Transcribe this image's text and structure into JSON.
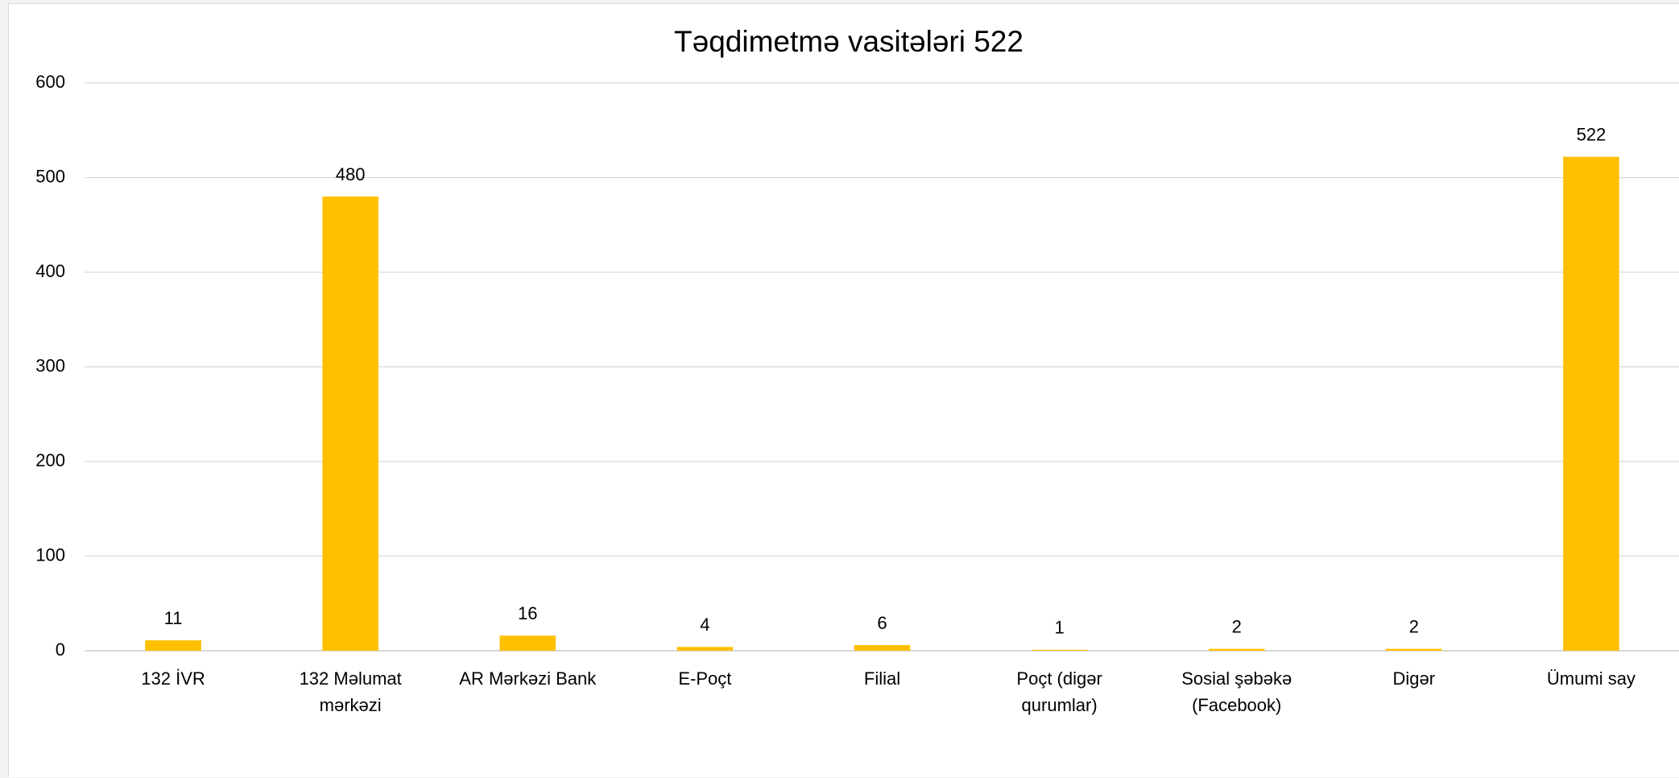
{
  "chart_data": {
    "type": "bar",
    "title": "Təqdimetmə vasitələri 522",
    "categories": [
      "132 İVR",
      "132 Məlumat mərkəzi",
      "AR Mərkəzi Bank",
      "E-Poçt",
      "Filial",
      "Poçt (digər qurumlar)",
      "Sosial şəbəkə (Facebook)",
      "Digər",
      "Ümumi say"
    ],
    "values": [
      11,
      480,
      16,
      4,
      6,
      1,
      2,
      2,
      522
    ],
    "color": "#ffc000",
    "ylim": [
      0,
      600
    ],
    "yticks": [
      0,
      100,
      200,
      300,
      400,
      500,
      600
    ],
    "grid": true
  }
}
